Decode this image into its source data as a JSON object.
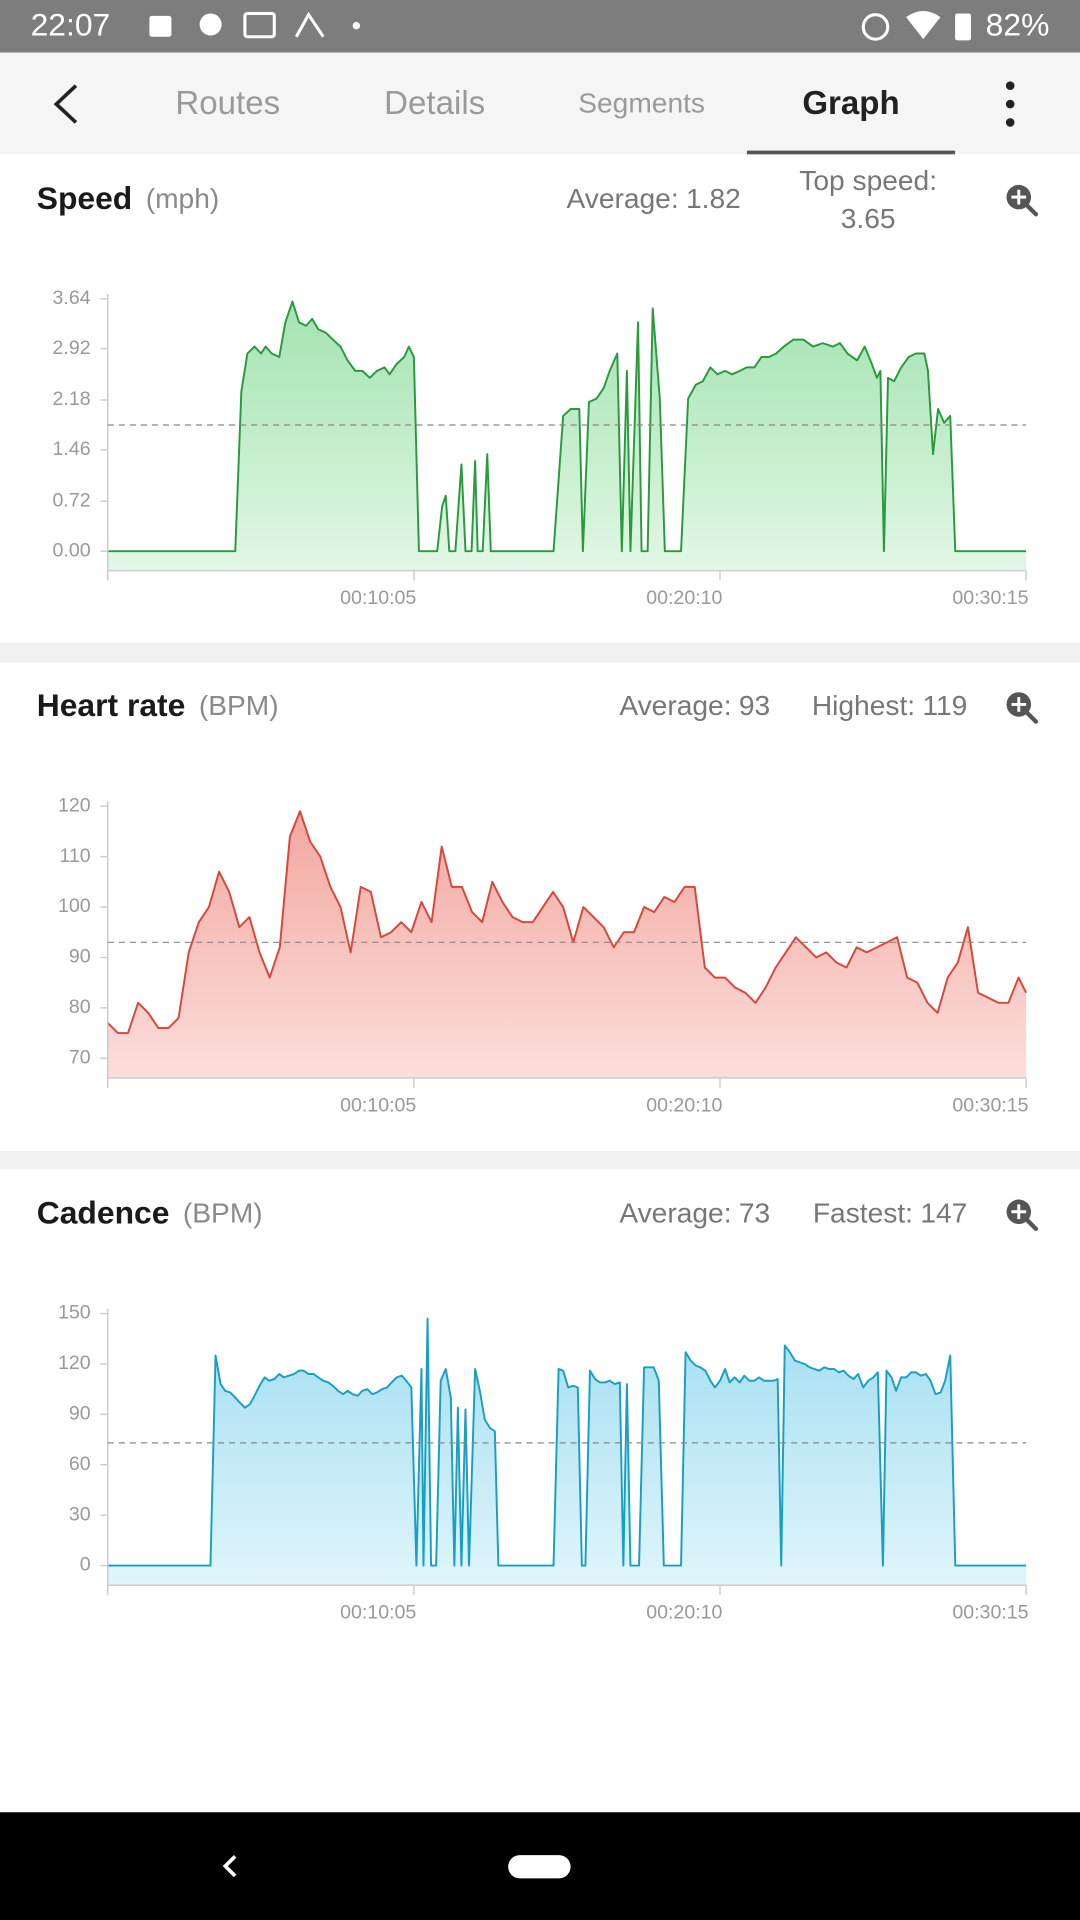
{
  "status_bar": {
    "time": "22:07",
    "battery": "82%"
  },
  "tabs": [
    "Routes",
    "Details",
    "Segments",
    "Graph"
  ],
  "chart_data": [
    {
      "type": "area",
      "title": "Speed",
      "unit": "(mph)",
      "average": {
        "label": "Average:",
        "value": 1.82
      },
      "peak": {
        "label": "Top speed:",
        "value": 3.65
      },
      "color": "#2a9a3e",
      "fill": [
        "#a3e3b0",
        "#e2f7e6"
      ],
      "xlim": [
        0,
        1815
      ],
      "xticks": [
        {
          "value": 605,
          "label": "00:10:05"
        },
        {
          "value": 1210,
          "label": "00:20:10"
        },
        {
          "value": 1815,
          "label": "00:30:15"
        }
      ],
      "ylim": [
        -0.28,
        3.71
      ],
      "yticks": [
        {
          "value": 0,
          "label": "0.00"
        },
        0.72,
        1.46,
        2.18,
        2.92,
        3.64
      ],
      "x": [
        0,
        252,
        264,
        276,
        290,
        303,
        312,
        324,
        339,
        351,
        365,
        378,
        392,
        404,
        416,
        431,
        445,
        460,
        474,
        489,
        503,
        518,
        532,
        547,
        557,
        571,
        586,
        595,
        605,
        615,
        651,
        661,
        668,
        675,
        687,
        699,
        707,
        719,
        726,
        731,
        741,
        750,
        757,
        881,
        900,
        915,
        932,
        939,
        951,
        966,
        980,
        992,
        1007,
        1016,
        1026,
        1033,
        1048,
        1055,
        1067,
        1077,
        1091,
        1101,
        1133,
        1147,
        1162,
        1176,
        1191,
        1205,
        1220,
        1234,
        1249,
        1263,
        1278,
        1292,
        1307,
        1321,
        1336,
        1355,
        1375,
        1394,
        1413,
        1433,
        1447,
        1462,
        1481,
        1496,
        1510,
        1520,
        1527,
        1534,
        1542,
        1554,
        1568,
        1583,
        1597,
        1614,
        1621,
        1631,
        1641,
        1653,
        1665,
        1675,
        1815
      ],
      "values": [
        0,
        0,
        2.3,
        2.85,
        2.95,
        2.85,
        2.95,
        2.85,
        2.8,
        3.3,
        3.6,
        3.3,
        3.25,
        3.35,
        3.2,
        3.15,
        3.05,
        2.95,
        2.75,
        2.6,
        2.6,
        2.5,
        2.6,
        2.65,
        2.55,
        2.7,
        2.8,
        2.95,
        2.8,
        0,
        0,
        0.65,
        0.8,
        0,
        0,
        1.25,
        0,
        0,
        1.3,
        0,
        0,
        1.4,
        0,
        0,
        1.95,
        2.05,
        2.05,
        0,
        2.15,
        2.2,
        2.35,
        2.6,
        2.85,
        0,
        2.6,
        0,
        3.3,
        0,
        0,
        3.5,
        2.2,
        0,
        0,
        2.2,
        2.4,
        2.45,
        2.65,
        2.55,
        2.6,
        2.55,
        2.6,
        2.65,
        2.65,
        2.8,
        2.8,
        2.85,
        2.95,
        3.05,
        3.05,
        2.95,
        3.0,
        2.95,
        3.0,
        2.85,
        2.75,
        2.95,
        2.7,
        2.5,
        2.6,
        0,
        2.5,
        2.45,
        2.65,
        2.8,
        2.85,
        2.85,
        2.6,
        1.4,
        2.05,
        1.85,
        1.95,
        0,
        0
      ]
    },
    {
      "type": "area",
      "title": "Heart rate",
      "unit": "(BPM)",
      "average": {
        "label": "Average:",
        "value": 93
      },
      "peak": {
        "label": "Highest:",
        "value": 119
      },
      "color": "#d8473a",
      "fill": [
        "#f3a7a0",
        "#fbdedb"
      ],
      "xlim": [
        0,
        1815
      ],
      "xticks": [
        {
          "value": 605,
          "label": "00:10:05"
        },
        {
          "value": 1210,
          "label": "00:20:10"
        },
        {
          "value": 1815,
          "label": "00:30:15"
        }
      ],
      "ylim": [
        66.1,
        121
      ],
      "yticks": [
        70,
        80,
        90,
        100,
        110,
        120
      ],
      "x": [
        0,
        20,
        40,
        60,
        80,
        100,
        120,
        140,
        160,
        180,
        200,
        220,
        240,
        260,
        280,
        300,
        320,
        340,
        360,
        380,
        400,
        420,
        440,
        460,
        480,
        500,
        520,
        540,
        560,
        580,
        600,
        620,
        640,
        660,
        680,
        700,
        720,
        740,
        760,
        780,
        800,
        820,
        840,
        860,
        880,
        900,
        920,
        940,
        960,
        980,
        1000,
        1020,
        1040,
        1060,
        1080,
        1100,
        1120,
        1140,
        1160,
        1180,
        1200,
        1220,
        1240,
        1260,
        1280,
        1300,
        1320,
        1340,
        1360,
        1380,
        1400,
        1420,
        1440,
        1460,
        1480,
        1500,
        1520,
        1540,
        1560,
        1580,
        1600,
        1620,
        1640,
        1660,
        1680,
        1700,
        1720,
        1740,
        1760,
        1780,
        1800,
        1815
      ],
      "values": [
        77,
        75,
        75,
        81,
        79,
        76,
        76,
        78,
        91,
        97,
        100,
        107,
        103,
        96,
        98,
        91,
        86,
        92,
        114,
        119,
        113,
        110,
        104,
        100,
        91,
        104,
        103,
        94,
        95,
        97,
        95,
        101,
        97,
        112,
        104,
        104,
        99,
        97,
        105,
        101,
        98,
        97,
        97,
        100,
        103,
        100,
        93,
        100,
        98,
        96,
        92,
        95,
        95,
        100,
        99,
        102,
        101,
        104,
        104,
        88,
        86,
        86,
        84,
        83,
        81,
        84,
        88,
        91,
        94,
        92,
        90,
        91,
        89,
        88,
        92,
        91,
        92,
        93,
        94,
        86,
        85,
        81,
        79,
        86,
        89,
        96,
        83,
        82,
        81,
        81,
        86,
        83
      ]
    },
    {
      "type": "area",
      "title": "Cadence",
      "unit": "(BPM)",
      "average": {
        "label": "Average:",
        "value": 73
      },
      "peak": {
        "label": "Fastest:",
        "value": 147
      },
      "color": "#1a9fc4",
      "fill": [
        "#a3def1",
        "#e0f5fb"
      ],
      "xlim": [
        0,
        1815
      ],
      "xticks": [
        {
          "value": 605,
          "label": "00:10:05"
        },
        {
          "value": 1210,
          "label": "00:20:10"
        },
        {
          "value": 1815,
          "label": "00:30:15"
        }
      ],
      "ylim": [
        -11.7,
        153
      ],
      "yticks": [
        0,
        30,
        60,
        90,
        120,
        150
      ],
      "x": [
        0,
        203,
        213,
        223,
        232,
        242,
        252,
        261,
        271,
        281,
        290,
        300,
        310,
        319,
        329,
        339,
        348,
        358,
        368,
        378,
        387,
        397,
        407,
        416,
        426,
        436,
        445,
        455,
        465,
        474,
        484,
        494,
        503,
        513,
        523,
        532,
        542,
        552,
        561,
        571,
        581,
        590,
        600,
        610,
        620,
        624,
        632,
        639,
        649,
        658,
        668,
        678,
        685,
        692,
        699,
        707,
        714,
        726,
        736,
        745,
        755,
        765,
        772,
        881,
        891,
        900,
        910,
        920,
        929,
        937,
        944,
        953,
        963,
        973,
        983,
        992,
        1002,
        1012,
        1019,
        1026,
        1033,
        1050,
        1060,
        1070,
        1079,
        1089,
        1099,
        1133,
        1142,
        1152,
        1162,
        1171,
        1181,
        1191,
        1200,
        1210,
        1220,
        1229,
        1239,
        1249,
        1258,
        1268,
        1278,
        1287,
        1297,
        1307,
        1316,
        1324,
        1331,
        1338,
        1348,
        1358,
        1367,
        1377,
        1387,
        1396,
        1406,
        1416,
        1425,
        1435,
        1445,
        1454,
        1464,
        1474,
        1483,
        1493,
        1503,
        1513,
        1522,
        1532,
        1539,
        1549,
        1558,
        1568,
        1578,
        1588,
        1597,
        1607,
        1617,
        1626,
        1636,
        1646,
        1655,
        1665,
        1675,
        1815
      ],
      "values": [
        0,
        0,
        125,
        108,
        104,
        103,
        100,
        97,
        94,
        96,
        101,
        107,
        112,
        110,
        111,
        114,
        112,
        113,
        114,
        116,
        116,
        114,
        114,
        112,
        110,
        109,
        107,
        104,
        102,
        104,
        102,
        101,
        104,
        105,
        102,
        103,
        105,
        106,
        109,
        112,
        113,
        110,
        106,
        0,
        117,
        0,
        147,
        0,
        0,
        110,
        117,
        100,
        0,
        94,
        0,
        93,
        0,
        117,
        103,
        87,
        82,
        80,
        0,
        0,
        117,
        116,
        106,
        107,
        106,
        0,
        0,
        116,
        111,
        109,
        109,
        110,
        108,
        109,
        0,
        108,
        0,
        0,
        118,
        118,
        118,
        110,
        0,
        0,
        127,
        122,
        119,
        118,
        116,
        110,
        106,
        110,
        117,
        109,
        112,
        109,
        113,
        110,
        110,
        112,
        110,
        110,
        110,
        111,
        0,
        131,
        127,
        122,
        121,
        120,
        118,
        117,
        116,
        118,
        117,
        117,
        115,
        116,
        113,
        111,
        114,
        106,
        110,
        112,
        115,
        0,
        116,
        112,
        104,
        112,
        112,
        115,
        115,
        113,
        114,
        110,
        102,
        103,
        110,
        125,
        0,
        0
      ]
    }
  ]
}
